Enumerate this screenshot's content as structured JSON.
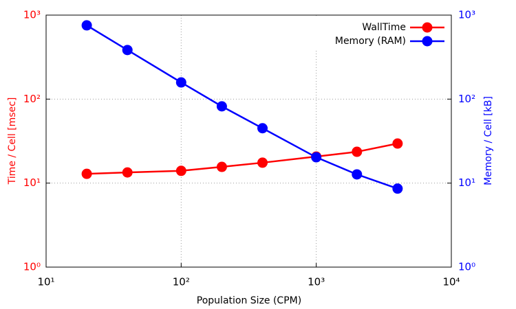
{
  "chart_data": {
    "type": "line",
    "x_label": "Population Size (CPM)",
    "y_label": "Time / Cell [msec]",
    "y2_label": "Memory / Cell [kB]",
    "x": [
      20,
      40,
      100,
      200,
      400,
      1000,
      2000,
      4000
    ],
    "series": [
      {
        "name": "WallTime",
        "color": "#ff0000",
        "axis": "y",
        "values": [
          12.9,
          13.4,
          14.0,
          15.6,
          17.5,
          20.7,
          23.6,
          29.6
        ]
      },
      {
        "name": "Memory (RAM)",
        "color": "#0000ff",
        "axis": "y2",
        "values": [
          755,
          384,
          158,
          82,
          45,
          20.3,
          12.7,
          8.6
        ]
      }
    ],
    "log_x": true,
    "log_y": true,
    "xlim": [
      10,
      10000
    ],
    "xticks": [
      {
        "value": 10,
        "label": "10¹"
      },
      {
        "value": 100,
        "label": "10²"
      },
      {
        "value": 1000,
        "label": "10³"
      },
      {
        "value": 10000,
        "label": "10⁴"
      }
    ],
    "ylim": [
      1,
      1000
    ],
    "yticks": [
      {
        "value": 1,
        "label": "10⁰"
      },
      {
        "value": 10,
        "label": "10¹"
      },
      {
        "value": 100,
        "label": "10²"
      },
      {
        "value": 1000,
        "label": "10³"
      }
    ],
    "y2lim": [
      1,
      1000
    ],
    "y2ticks": [
      {
        "value": 1,
        "label": "10⁰"
      },
      {
        "value": 10,
        "label": "10¹"
      },
      {
        "value": 100,
        "label": "10²"
      },
      {
        "value": 1000,
        "label": "10³"
      }
    ],
    "grid": true,
    "legend": "upper right"
  }
}
